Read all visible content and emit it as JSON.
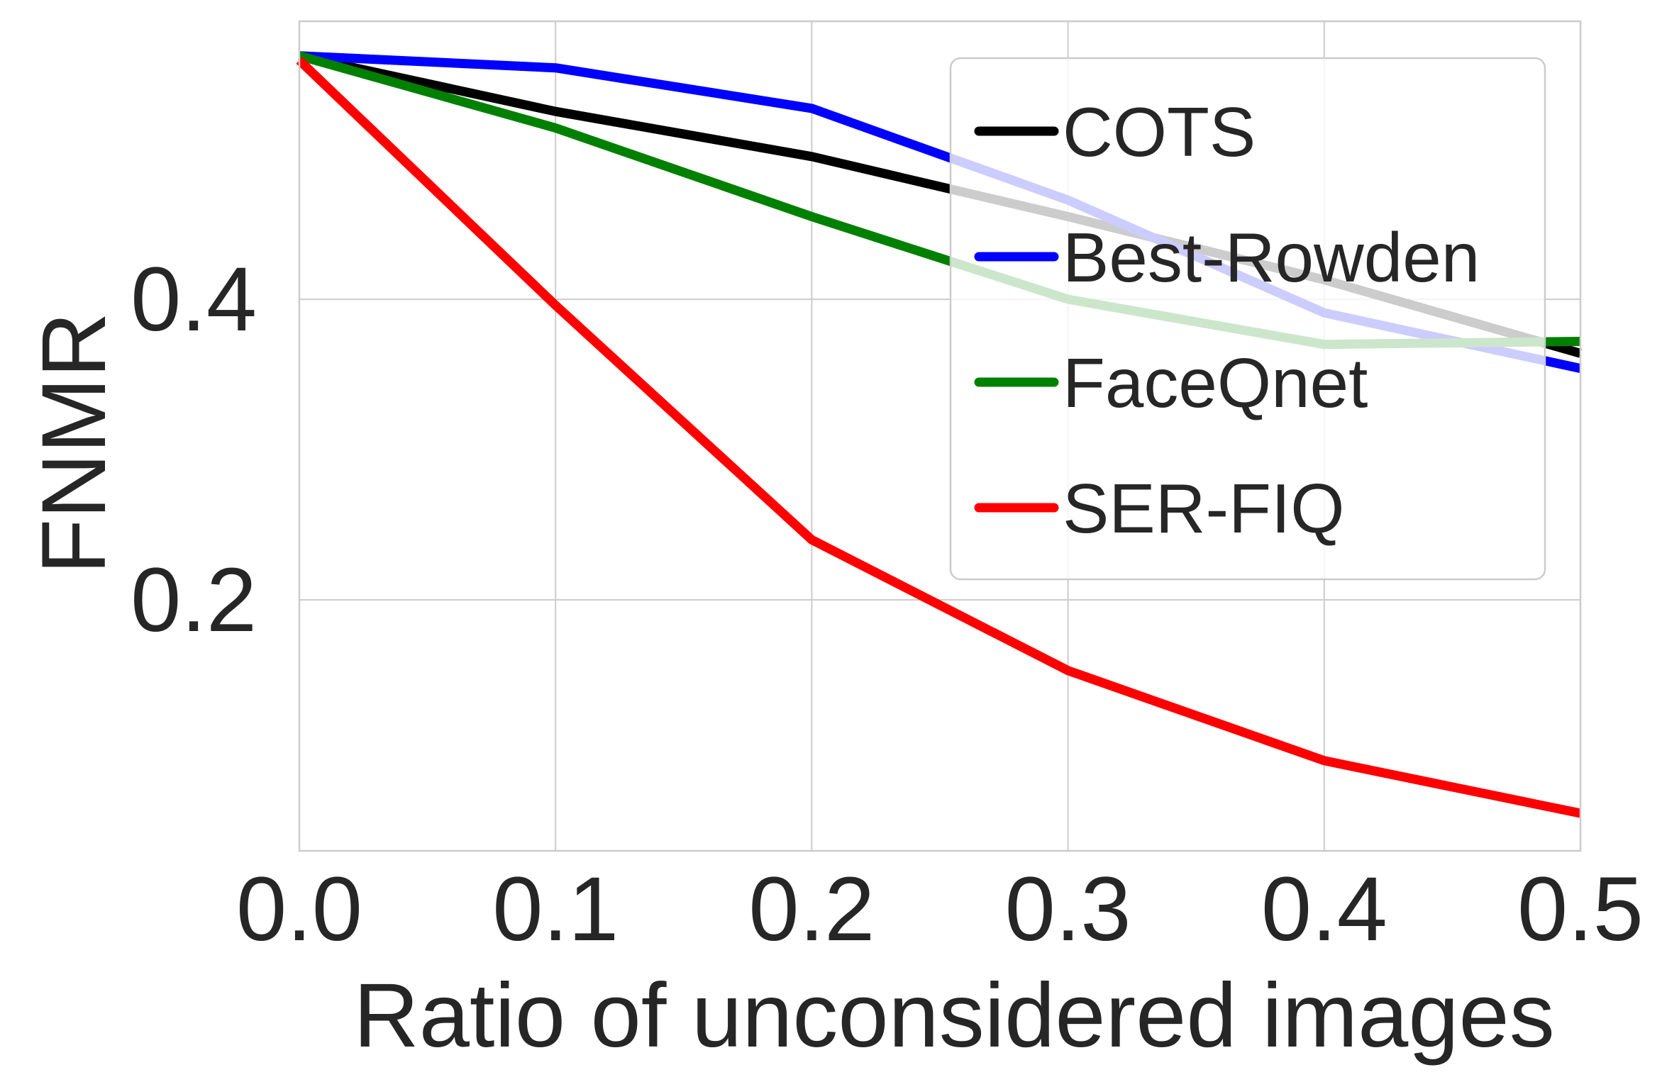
{
  "chart_data": {
    "type": "line",
    "title": "",
    "xlabel": "Ratio of unconsidered images",
    "ylabel": "FNMR",
    "x": [
      0.0,
      0.1,
      0.2,
      0.3,
      0.4,
      0.5
    ],
    "xlim": [
      0.0,
      0.5
    ],
    "ylim": [
      0.033,
      0.585
    ],
    "x_ticks": [
      0.0,
      0.1,
      0.2,
      0.3,
      0.4,
      0.5
    ],
    "x_tick_labels": [
      "0.0",
      "0.1",
      "0.2",
      "0.3",
      "0.4",
      "0.5"
    ],
    "y_ticks": [
      0.2,
      0.4
    ],
    "y_tick_labels": [
      "0.2",
      "0.4"
    ],
    "grid": true,
    "legend_position": "top-right",
    "series": [
      {
        "name": "COTS",
        "color": "#000000",
        "values": [
          0.562,
          0.525,
          0.495,
          0.455,
          0.413,
          0.364
        ]
      },
      {
        "name": "Best-Rowden",
        "color": "#0000ff",
        "values": [
          0.562,
          0.554,
          0.527,
          0.466,
          0.391,
          0.354
        ]
      },
      {
        "name": "FaceQnet",
        "color": "#008000",
        "values": [
          0.562,
          0.514,
          0.455,
          0.4,
          0.37,
          0.372
        ]
      },
      {
        "name": "SER-FIQ",
        "color": "#ff0000",
        "values": [
          0.559,
          0.396,
          0.24,
          0.153,
          0.093,
          0.058
        ]
      }
    ]
  }
}
